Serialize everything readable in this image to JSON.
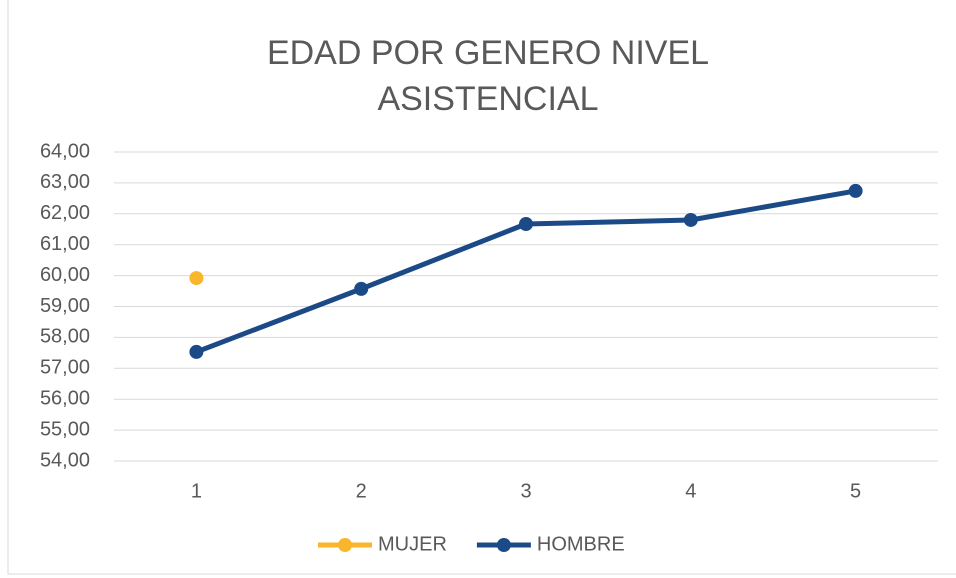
{
  "chart_data": {
    "type": "line",
    "title": "EDAD POR GENERO NIVEL ASISTENCIAL",
    "categories": [
      "1",
      "2",
      "3",
      "4",
      "5"
    ],
    "series": [
      {
        "name": "MUJER",
        "color": "#f9b52b",
        "values": [
          59.92,
          null,
          null,
          null,
          null
        ]
      },
      {
        "name": "HOMBRE",
        "color": "#1c4a87",
        "values": [
          57.53,
          59.57,
          61.67,
          61.8,
          62.74
        ]
      }
    ],
    "ylim": [
      54,
      64
    ],
    "yticks": [
      {
        "value": 54,
        "label": "54,00"
      },
      {
        "value": 55,
        "label": "55,00"
      },
      {
        "value": 56,
        "label": "56,00"
      },
      {
        "value": 57,
        "label": "57,00"
      },
      {
        "value": 58,
        "label": "58,00"
      },
      {
        "value": 59,
        "label": "59,00"
      },
      {
        "value": 60,
        "label": "60,00"
      },
      {
        "value": 61,
        "label": "61,00"
      },
      {
        "value": 62,
        "label": "62,00"
      },
      {
        "value": 63,
        "label": "63,00"
      },
      {
        "value": 64,
        "label": "64,00"
      }
    ],
    "grid": true,
    "legend": "bottom"
  }
}
